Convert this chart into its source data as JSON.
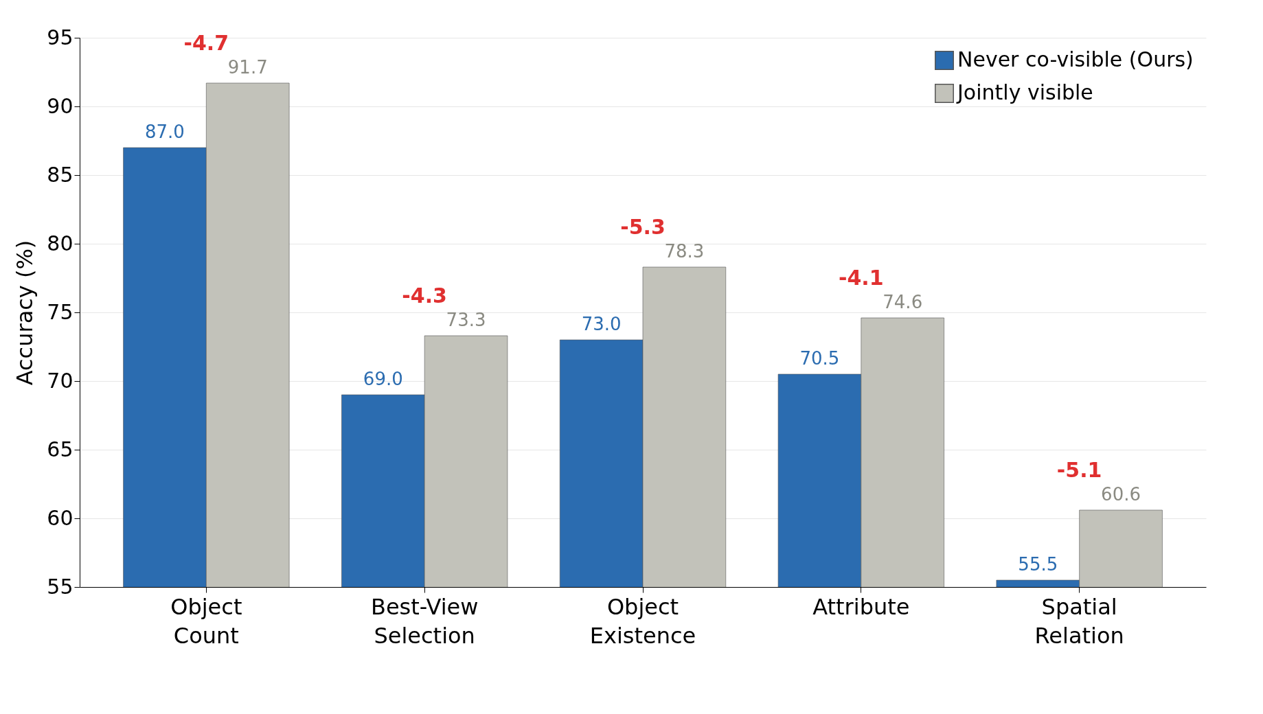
{
  "chart_data": {
    "type": "bar",
    "ylabel": "Accuracy (%)",
    "categories": [
      "Object\nCount",
      "Best-View\nSelection",
      "Object\nExistence",
      "Attribute",
      "Spatial\nRelation"
    ],
    "series": [
      {
        "name": "Never co-visible (Ours)",
        "color": "#2b6cb0",
        "values": [
          87.0,
          69.0,
          73.0,
          70.5,
          55.5
        ],
        "value_labels": [
          "87.0",
          "69.0",
          "73.0",
          "70.5",
          "55.5"
        ]
      },
      {
        "name": "Jointly visible",
        "color": "#c2c2ba",
        "values": [
          91.7,
          73.3,
          78.3,
          74.6,
          60.6
        ],
        "value_labels": [
          "91.7",
          "73.3",
          "78.3",
          "74.6",
          "60.6"
        ]
      }
    ],
    "annotations": [
      {
        "text": "-4.7",
        "x": "Object\nCount",
        "y": 91.7
      },
      {
        "text": "-4.3",
        "x": "Best-View\nSelection",
        "y": 73.3
      },
      {
        "text": "-5.3",
        "x": "Object\nExistence",
        "y": 78.3
      },
      {
        "text": "-4.1",
        "x": "Attribute",
        "y": 74.6
      },
      {
        "text": "-5.1",
        "x": "Spatial\nRelation",
        "y": 60.6
      }
    ],
    "ylim": [
      55,
      95
    ],
    "yticks": [
      55,
      60,
      65,
      70,
      75,
      80,
      85,
      90,
      95
    ],
    "grid": "y",
    "legend": "top right"
  }
}
